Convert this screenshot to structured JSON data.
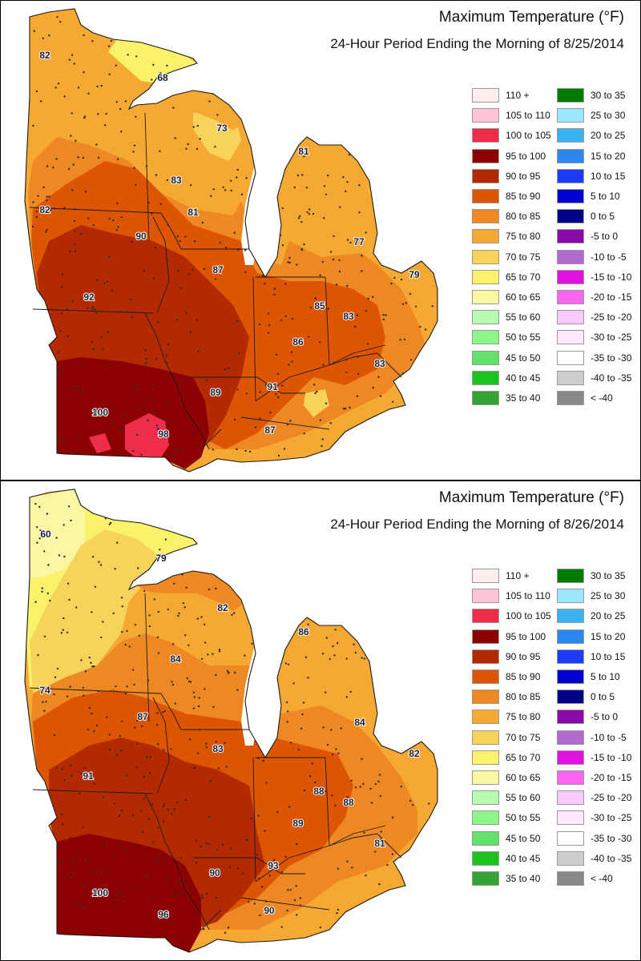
{
  "legend": [
    {
      "label": "110 +",
      "color": "#fdeeee"
    },
    {
      "label": "105 to 110",
      "color": "#fbc4d8"
    },
    {
      "label": "100 to 105",
      "color": "#ee2d4a"
    },
    {
      "label": "95 to 100",
      "color": "#8b0000"
    },
    {
      "label": "90 to 95",
      "color": "#b32a00"
    },
    {
      "label": "85 to 90",
      "color": "#dd5500"
    },
    {
      "label": "80 to 85",
      "color": "#ee8822"
    },
    {
      "label": "75 to 80",
      "color": "#f5a933"
    },
    {
      "label": "70 to 75",
      "color": "#f8d35a"
    },
    {
      "label": "65 to 70",
      "color": "#f9f26a"
    },
    {
      "label": "60 to 65",
      "color": "#f9f6a4"
    },
    {
      "label": "55 to 60",
      "color": "#b7fab2"
    },
    {
      "label": "50 to 55",
      "color": "#8ef58a"
    },
    {
      "label": "45 to 50",
      "color": "#61e26b"
    },
    {
      "label": "40 to 45",
      "color": "#1cc31c"
    },
    {
      "label": "35 to 40",
      "color": "#36a336"
    },
    {
      "label": "30 to 35",
      "color": "#007a00"
    },
    {
      "label": "25 to 30",
      "color": "#99e8fb"
    },
    {
      "label": "20 to 25",
      "color": "#3ab2f0"
    },
    {
      "label": "15 to 20",
      "color": "#2a88f0"
    },
    {
      "label": "10 to 15",
      "color": "#1a3cf5"
    },
    {
      "label": "5 to 10",
      "color": "#0000d0"
    },
    {
      "label": "0 to 5",
      "color": "#000088"
    },
    {
      "label": "-5 to 0",
      "color": "#8a0aaa"
    },
    {
      "label": "-10 to -5",
      "color": "#b06ad0"
    },
    {
      "label": "-15 to -10",
      "color": "#e010e0"
    },
    {
      "label": "-20 to -15",
      "color": "#f966f0"
    },
    {
      "label": "-25 to -20",
      "color": "#fbc8fb"
    },
    {
      "label": "-30 to -25",
      "color": "#fde8fd"
    },
    {
      "label": "-35 to -30",
      "color": "#ffffff"
    },
    {
      "label": "-40 to -35",
      "color": "#cccccc"
    },
    {
      "label": "< -40",
      "color": "#888888"
    }
  ],
  "maps": [
    {
      "title": "Maximum Temperature (°F)",
      "subtitle": "24-Hour Period Ending the Morning of 8/25/2014",
      "labels": [
        "82",
        "68",
        "73",
        "81",
        "83",
        "81",
        "82",
        "90",
        "87",
        "77",
        "79",
        "92",
        "85",
        "83",
        "86",
        "83",
        "89",
        "91",
        "100",
        "98",
        "87"
      ]
    },
    {
      "title": "Maximum Temperature (°F)",
      "subtitle": "24-Hour Period Ending the Morning of 8/26/2014",
      "labels": [
        "60",
        "79",
        "82",
        "86",
        "84",
        "74",
        "87",
        "84",
        "83",
        "82",
        "91",
        "88",
        "88",
        "89",
        "81",
        "90",
        "93",
        "100",
        "96",
        "90"
      ]
    }
  ]
}
